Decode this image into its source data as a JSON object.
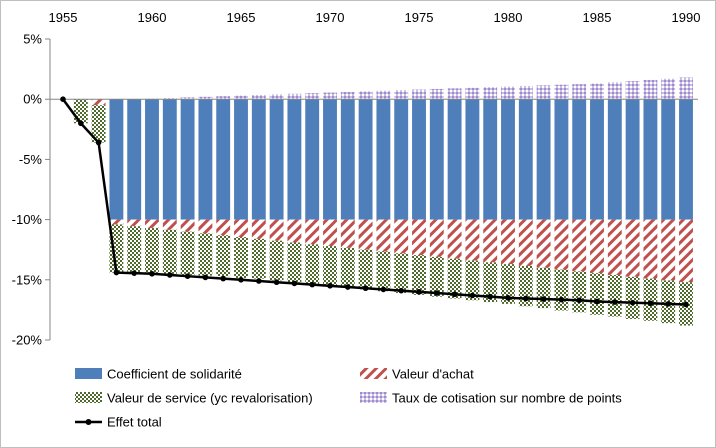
{
  "chart_data": {
    "type": "bar",
    "stacked": true,
    "title": "",
    "xlabel": "",
    "ylabel": "",
    "x": [
      1955,
      1956,
      1957,
      1958,
      1959,
      1960,
      1961,
      1962,
      1963,
      1964,
      1965,
      1966,
      1967,
      1968,
      1969,
      1970,
      1971,
      1972,
      1973,
      1974,
      1975,
      1976,
      1977,
      1978,
      1979,
      1980,
      1981,
      1982,
      1983,
      1984,
      1985,
      1986,
      1987,
      1988,
      1989,
      1990
    ],
    "x_tick_labels": [
      "1955",
      "1960",
      "1965",
      "1970",
      "1975",
      "1980",
      "1985",
      "1990"
    ],
    "x_axis_position": "top",
    "ylim": [
      -20,
      5
    ],
    "y_ticks": [
      5,
      0,
      -5,
      -10,
      -15,
      -20
    ],
    "y_tick_labels": [
      "5%",
      "0%",
      "-5%",
      "-10%",
      "-15%",
      "-20%"
    ],
    "grid": false,
    "legend_position": "bottom",
    "series": [
      {
        "name": "Coefficient de solidarité",
        "kind": "bar",
        "color": "#4f7fbb",
        "pattern": "solid",
        "values": [
          0,
          0,
          0,
          -10,
          -10,
          -10,
          -10,
          -10,
          -10,
          -10,
          -10,
          -10,
          -10,
          -10,
          -10,
          -10,
          -10,
          -10,
          -10,
          -10,
          -10,
          -10,
          -10,
          -10,
          -10,
          -10,
          -10,
          -10,
          -10,
          -10,
          -10,
          -10,
          -10,
          -10,
          -10,
          -10
        ]
      },
      {
        "name": "Valeur d'achat",
        "kind": "bar",
        "color": "#c0504d",
        "pattern": "diagonal-stripes",
        "values": [
          0,
          0,
          -0.5,
          -0.4,
          -0.55,
          -0.7,
          -0.85,
          -1.0,
          -1.15,
          -1.3,
          -1.45,
          -1.6,
          -1.75,
          -1.9,
          -2.05,
          -2.2,
          -2.35,
          -2.5,
          -2.65,
          -2.8,
          -2.95,
          -3.1,
          -3.25,
          -3.4,
          -3.55,
          -3.7,
          -3.85,
          -4.0,
          -4.15,
          -4.3,
          -4.45,
          -4.6,
          -4.75,
          -4.9,
          -5.05,
          -5.2
        ]
      },
      {
        "name": "Valeur de service (yc revalorisation)",
        "kind": "bar",
        "color": "#4e6b2b",
        "pattern": "checker",
        "values": [
          0,
          -2,
          -3.1,
          -4.0,
          -3.9,
          -3.8,
          -3.7,
          -3.6,
          -3.5,
          -3.4,
          -3.4,
          -3.3,
          -3.3,
          -3.3,
          -3.3,
          -3.3,
          -3.3,
          -3.3,
          -3.3,
          -3.3,
          -3.3,
          -3.3,
          -3.3,
          -3.3,
          -3.3,
          -3.3,
          -3.35,
          -3.35,
          -3.4,
          -3.4,
          -3.45,
          -3.45,
          -3.5,
          -3.5,
          -3.55,
          -3.6
        ]
      },
      {
        "name": "Taux de cotisation sur nombre de points",
        "kind": "bar",
        "color": "#b4a6d9",
        "pattern": "dots",
        "values": [
          0,
          0,
          0,
          0,
          0,
          0.05,
          0.1,
          0.15,
          0.2,
          0.25,
          0.3,
          0.35,
          0.4,
          0.45,
          0.5,
          0.55,
          0.6,
          0.65,
          0.7,
          0.75,
          0.8,
          0.85,
          0.9,
          0.95,
          1.0,
          1.05,
          1.1,
          1.15,
          1.2,
          1.25,
          1.3,
          1.4,
          1.5,
          1.6,
          1.7,
          1.8
        ]
      },
      {
        "name": "Effet total",
        "kind": "line",
        "color": "#000000",
        "values": [
          0,
          -2,
          -3.6,
          -14.4,
          -14.45,
          -14.5,
          -14.6,
          -14.7,
          -14.8,
          -14.9,
          -15.0,
          -15.1,
          -15.2,
          -15.3,
          -15.4,
          -15.5,
          -15.6,
          -15.7,
          -15.8,
          -15.9,
          -16.0,
          -16.1,
          -16.2,
          -16.3,
          -16.4,
          -16.5,
          -16.55,
          -16.6,
          -16.65,
          -16.7,
          -16.8,
          -16.85,
          -16.9,
          -16.95,
          -17.0,
          -17.05
        ]
      }
    ]
  }
}
